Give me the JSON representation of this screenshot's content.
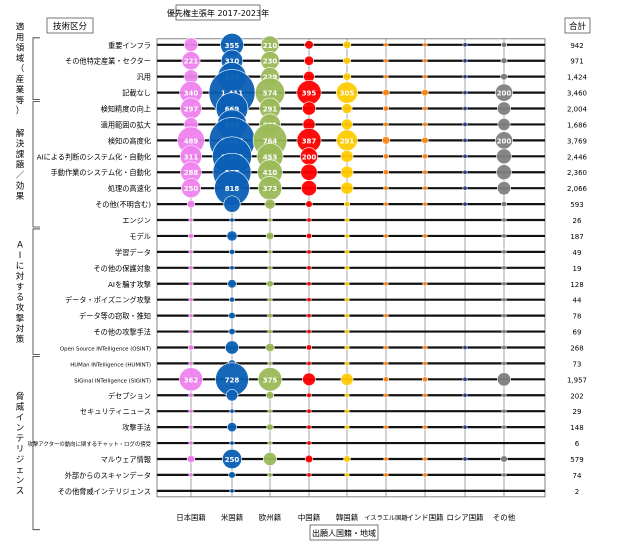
{
  "chart_data": {
    "type": "bubble",
    "title": "優先権主張年 2017-2023年",
    "row_axis_header": "技術区分",
    "total_header": "合計",
    "x_axis_title": "出願人国籍・地域",
    "columns": [
      "日本国籍",
      "米国籍",
      "欧州籍",
      "中国籍",
      "韓国籍",
      "イスラエル国籍",
      "インド国籍",
      "ロシア国籍",
      "その他"
    ],
    "column_colors": [
      "#ee82ee",
      "#0b5fb5",
      "#9bbb59",
      "#ff0000",
      "#ffcc00",
      "#ff8c1a",
      "#ff8c1a",
      "#2f3f8f",
      "#808080"
    ],
    "groups": [
      {
        "name": "適用領域（産業等）",
        "rows": [
          0,
          3
        ]
      },
      {
        "name": "解決課題／効果",
        "rows": [
          4,
          11
        ]
      },
      {
        "name": "AIに対する攻撃対策",
        "rows": [
          12,
          19
        ]
      },
      {
        "name": "脅威インテリジェンス",
        "rows": [
          20,
          30
        ]
      }
    ],
    "rows": [
      {
        "label": "重要インフラ",
        "total": 942,
        "values": [
          125,
          355,
          210,
          50,
          40,
          5,
          8,
          3,
          20
        ]
      },
      {
        "label": "その他特定産業・セクター",
        "total": 971,
        "values": [
          221,
          310,
          230,
          60,
          35,
          5,
          8,
          3,
          25
        ]
      },
      {
        "label": "汎用",
        "total": 1424,
        "values": [
          130,
          536,
          229,
          80,
          40,
          10,
          5,
          3,
          30
        ]
      },
      {
        "label": "記載なし",
        "total": 3460,
        "values": [
          340,
          1411,
          574,
          395,
          305,
          30,
          30,
          10,
          200
        ]
      },
      {
        "label": "検知精度の向上",
        "total": 2004,
        "values": [
          297,
          669,
          291,
          120,
          70,
          20,
          15,
          8,
          120
        ]
      },
      {
        "label": "適用範囲の拡大",
        "total": 1686,
        "values": [
          130,
          573,
          301,
          100,
          80,
          15,
          15,
          5,
          100
        ]
      },
      {
        "label": "検知の高度化",
        "total": 3769,
        "values": [
          489,
          1387,
          764,
          387,
          291,
          40,
          30,
          10,
          200
        ]
      },
      {
        "label": "AIによる判断のシステム化・自動化",
        "total": 2446,
        "values": [
          311,
          1019,
          453,
          200,
          100,
          20,
          20,
          8,
          150
        ]
      },
      {
        "label": "手動作業のシステム化・自動化",
        "total": 2360,
        "values": [
          288,
          967,
          410,
          180,
          100,
          20,
          15,
          8,
          150
        ]
      },
      {
        "label": "処理の高速化",
        "total": 2066,
        "values": [
          250,
          818,
          373,
          160,
          100,
          15,
          15,
          5,
          120
        ]
      },
      {
        "label": "その他(不明含む)",
        "total": 593,
        "values": [
          40,
          180,
          70,
          30,
          20,
          5,
          5,
          2,
          20
        ]
      },
      {
        "label": "エンジン",
        "total": 26,
        "values": [
          2,
          10,
          4,
          4,
          2,
          0,
          0,
          0,
          2
        ]
      },
      {
        "label": "モデル",
        "total": 187,
        "values": [
          20,
          70,
          40,
          20,
          10,
          2,
          2,
          0,
          10
        ]
      },
      {
        "label": "学習データ",
        "total": 49,
        "values": [
          5,
          20,
          10,
          5,
          3,
          0,
          0,
          0,
          3
        ]
      },
      {
        "label": "その他の保護対象",
        "total": 19,
        "values": [
          2,
          8,
          3,
          2,
          1,
          0,
          0,
          0,
          1
        ]
      },
      {
        "label": "AIを騙す攻撃",
        "total": 128,
        "values": [
          10,
          50,
          30,
          10,
          5,
          2,
          1,
          0,
          5
        ]
      },
      {
        "label": "データ・ポイズニング攻撃",
        "total": 44,
        "values": [
          4,
          18,
          10,
          4,
          2,
          0,
          0,
          0,
          2
        ]
      },
      {
        "label": "データ等の窃取・推知",
        "total": 78,
        "values": [
          8,
          30,
          15,
          8,
          4,
          1,
          0,
          0,
          4
        ]
      },
      {
        "label": "その他の攻撃手法",
        "total": 69,
        "values": [
          6,
          28,
          14,
          6,
          3,
          0,
          0,
          0,
          3
        ]
      },
      {
        "label": "Open Source INTelligence (OSINT)",
        "total": 268,
        "values": [
          20,
          120,
          50,
          20,
          10,
          5,
          5,
          2,
          15
        ]
      },
      {
        "label": "HUMan INTelligence (HUMINT)",
        "total": 73,
        "values": [
          5,
          35,
          12,
          5,
          3,
          1,
          1,
          0,
          4
        ]
      },
      {
        "label": "SIGinal INTelligence (SIGINT)",
        "total": 1957,
        "values": [
          362,
          728,
          375,
          110,
          100,
          20,
          20,
          10,
          120
        ]
      },
      {
        "label": "デセプション",
        "total": 202,
        "values": [
          15,
          90,
          40,
          15,
          10,
          3,
          3,
          1,
          10
        ]
      },
      {
        "label": "セキュリティニュース",
        "total": 29,
        "values": [
          3,
          12,
          5,
          3,
          2,
          0,
          0,
          0,
          2
        ]
      },
      {
        "label": "攻撃手法",
        "total": 148,
        "values": [
          12,
          60,
          30,
          12,
          8,
          2,
          2,
          1,
          8
        ]
      },
      {
        "label": "攻撃アクターの動向に関するチャット・ログの傍受",
        "total": 6,
        "values": [
          1,
          2,
          1,
          1,
          0,
          0,
          0,
          0,
          0
        ]
      },
      {
        "label": "マルウェア情報",
        "total": 579,
        "values": [
          40,
          250,
          120,
          40,
          30,
          5,
          5,
          2,
          30
        ]
      },
      {
        "label": "外部からのスキャンデータ",
        "total": 74,
        "values": [
          6,
          30,
          15,
          6,
          4,
          1,
          1,
          0,
          4
        ]
      },
      {
        "label": "その他脅威インテリジェンス",
        "total": 2,
        "values": [
          0,
          2,
          0,
          0,
          0,
          0,
          0,
          0,
          0
        ]
      }
    ],
    "threshold_label": 200
  }
}
